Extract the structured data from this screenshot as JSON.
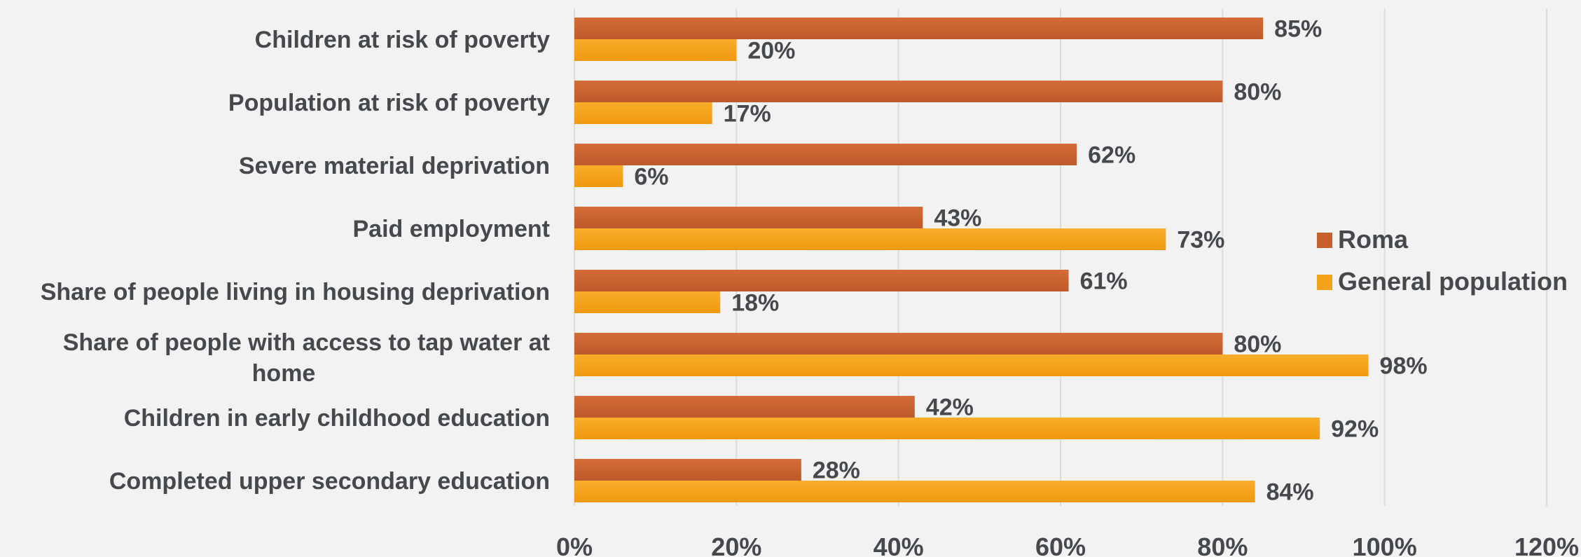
{
  "chart_data": {
    "type": "bar",
    "orientation": "horizontal",
    "categories": [
      "Children at risk of poverty",
      "Population at risk of poverty",
      "Severe material deprivation",
      "Paid employment",
      "Share of people living in housing deprivation",
      "Share of people with  access to tap water at home",
      "Children in early childhood education",
      "Completed upper secondary education"
    ],
    "category_lines": [
      [
        "Children at risk of poverty"
      ],
      [
        "Population at risk of poverty"
      ],
      [
        "Severe material deprivation"
      ],
      [
        "Paid employment"
      ],
      [
        "Share of people living in housing deprivation"
      ],
      [
        "Share of people with  access to tap water at",
        "home"
      ],
      [
        "Children in early childhood education"
      ],
      [
        "Completed upper secondary education"
      ]
    ],
    "series": [
      {
        "name": "Roma",
        "values": [
          85,
          80,
          62,
          43,
          61,
          80,
          42,
          28
        ],
        "color": "#c8602e"
      },
      {
        "name": "General population",
        "values": [
          20,
          17,
          6,
          73,
          18,
          98,
          92,
          84
        ],
        "color": "#f5a21b"
      }
    ],
    "value_suffix": "%",
    "xlim": [
      0,
      120
    ],
    "xticks": [
      0,
      20,
      40,
      60,
      80,
      100,
      120
    ],
    "grid": true,
    "legend_position": "right"
  }
}
